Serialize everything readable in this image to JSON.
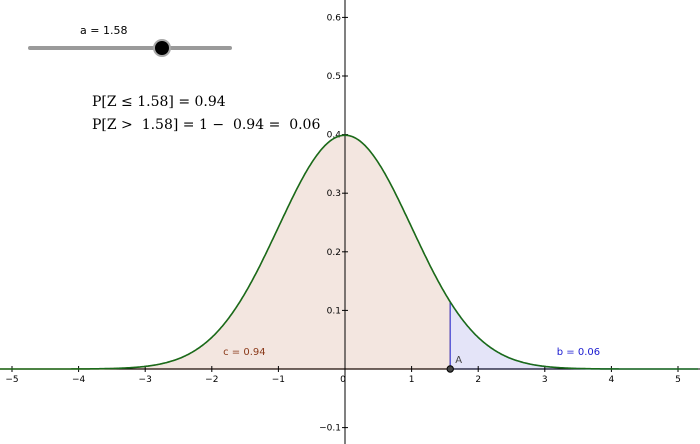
{
  "slider": {
    "label": "a = 1.58",
    "value": 1.58,
    "min": -5,
    "max": 5
  },
  "formulas": {
    "line1": "P[Z ≤ 1.58] = 0.94",
    "line2": "P[Z >  1.58] = 1 −  0.94 =  0.06"
  },
  "labels": {
    "c": "c = 0.94",
    "b": "b = 0.06",
    "point": "A"
  },
  "chart_data": {
    "type": "area",
    "curve": "standard normal density",
    "mean": 0,
    "sd": 1,
    "cut_point": 1.58,
    "left_area": 0.94,
    "right_area": 0.06,
    "xlim": [
      -5.2,
      5.3
    ],
    "ylim": [
      -0.13,
      0.63
    ],
    "xticks": [
      -5,
      -4,
      -3,
      -2,
      -1,
      0,
      1,
      2,
      3,
      4,
      5
    ],
    "yticks": [
      -0.1,
      0.1,
      0.2,
      0.3,
      0.4,
      0.5,
      0.6
    ],
    "grid": false
  },
  "colors": {
    "curve": "#1a6b1a",
    "left_fill": "#f3e6e0",
    "left_edge": "#8b3a1a",
    "right_fill": "#e4e4f8",
    "right_edge": "#3f3fd0",
    "c_label": "#8b3a1a",
    "b_label": "#1a1ad0"
  }
}
